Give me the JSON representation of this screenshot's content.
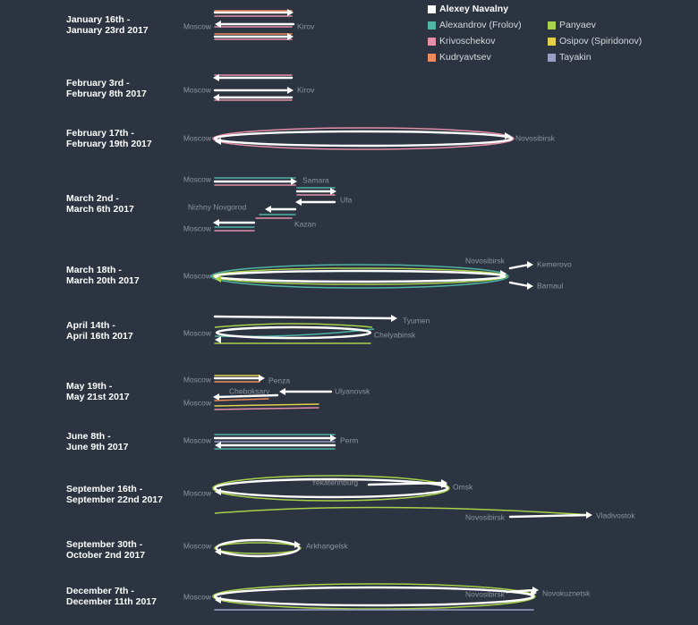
{
  "legend": {
    "title": "Alexey Navalny",
    "title_color": "#ffffff",
    "people": [
      {
        "name": "Alexandrov (Frolov)",
        "color": "#4fb3a5"
      },
      {
        "name": "Panyaev",
        "color": "#a8d14c"
      },
      {
        "name": "Krivoschekov",
        "color": "#e58ea7"
      },
      {
        "name": "Osipov (Spiridonov)",
        "color": "#e3cf4a"
      },
      {
        "name": "Kudryavtsev",
        "color": "#ef8a5c"
      },
      {
        "name": "Tayakin",
        "color": "#9a9ec4"
      }
    ]
  },
  "trips": [
    {
      "date_line1": "January 16th -",
      "date_line2": "January 23rd 2017",
      "cities": [
        "Moscow",
        "Kirov"
      ],
      "companions": [
        "Krivoschekov",
        "Kudryavtsev"
      ]
    },
    {
      "date_line1": "February 3rd -",
      "date_line2": "February 8th 2017",
      "cities": [
        "Moscow",
        "Kirov"
      ],
      "companions": [
        "Krivoschekov"
      ]
    },
    {
      "date_line1": "February 17th -",
      "date_line2": "February 19th 2017",
      "cities": [
        "Moscow",
        "Novosibirsk"
      ],
      "companions": [
        "Krivoschekov"
      ]
    },
    {
      "date_line1": "March 2nd -",
      "date_line2": "March 6th 2017",
      "cities": [
        "Moscow",
        "Samara",
        "Ufa",
        "Nizhny Novgorod",
        "Kazan",
        "Moscow"
      ],
      "companions": [
        "Alexandrov (Frolov)",
        "Krivoschekov"
      ]
    },
    {
      "date_line1": "March 18th -",
      "date_line2": "March 20th 2017",
      "cities": [
        "Moscow",
        "Novosibirsk",
        "Kemerovo",
        "Barnaul"
      ],
      "companions": [
        "Alexandrov (Frolov)",
        "Panyaev"
      ]
    },
    {
      "date_line1": "April 14th -",
      "date_line2": "April 16th 2017",
      "cities": [
        "Moscow",
        "Tyumen",
        "Chelyabinsk"
      ],
      "companions": [
        "Alexandrov (Frolov)",
        "Panyaev"
      ]
    },
    {
      "date_line1": "May 19th -",
      "date_line2": "May 21st 2017",
      "cities": [
        "Moscow",
        "Penza",
        "Cheboksary",
        "Ulyanovsk",
        "Moscow"
      ],
      "companions": [
        "Osipov (Spiridonov)",
        "Kudryavtsev",
        "Krivoschekov"
      ]
    },
    {
      "date_line1": "June 8th -",
      "date_line2": "June 9th 2017",
      "cities": [
        "Moscow",
        "Perm"
      ],
      "companions": [
        "Alexandrov (Frolov)",
        "Tayakin"
      ]
    },
    {
      "date_line1": "September 16th -",
      "date_line2": "September 22nd 2017",
      "cities": [
        "Moscow",
        "Yekaterinburg",
        "Omsk",
        "Novosibirsk",
        "Vladivostok"
      ],
      "companions": [
        "Panyaev"
      ]
    },
    {
      "date_line1": "September 30th -",
      "date_line2": "October 2nd 2017",
      "cities": [
        "Moscow",
        "Arkhangelsk"
      ],
      "companions": [
        "Panyaev"
      ]
    },
    {
      "date_line1": "December 7th -",
      "date_line2": "December 11th 2017",
      "cities": [
        "Moscow",
        "Novosibirsk",
        "Novokuznetsk"
      ],
      "companions": [
        "Panyaev",
        "Tayakin"
      ]
    }
  ]
}
